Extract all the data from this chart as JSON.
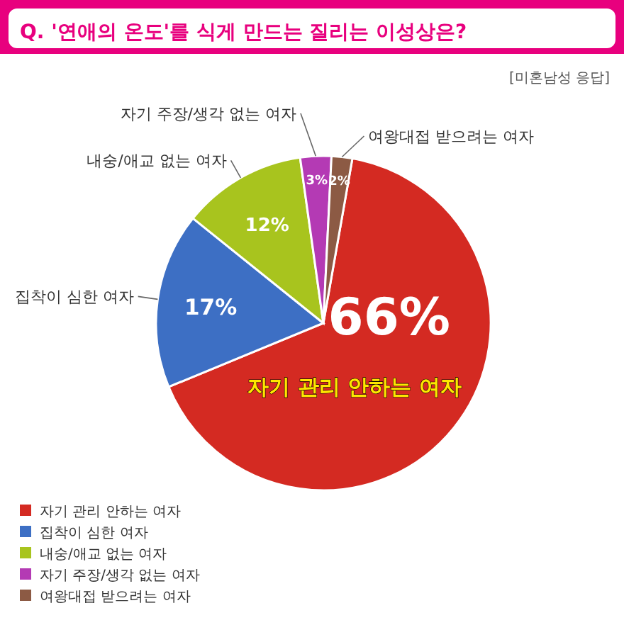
{
  "chart_data": {
    "type": "pie",
    "title": "Q. '연애의 온도'를 식게 만드는 질리는 이성상은?",
    "subtitle": "[미혼남성 응답]",
    "categories": [
      "자기 관리 안하는 여자",
      "집착이 심한 여자",
      "내숭/애교 없는 여자",
      "자기 주장/생각 없는 여자",
      "여왕대접 받으려는 여자"
    ],
    "values": [
      66,
      17,
      12,
      3,
      2
    ],
    "colors": [
      "#d42a22",
      "#3d6fc4",
      "#a8c41e",
      "#b43ab4",
      "#8c5a44"
    ],
    "value_labels": [
      "66%",
      "17%",
      "12%",
      "3%",
      "2%"
    ],
    "legend": "bottom left"
  }
}
